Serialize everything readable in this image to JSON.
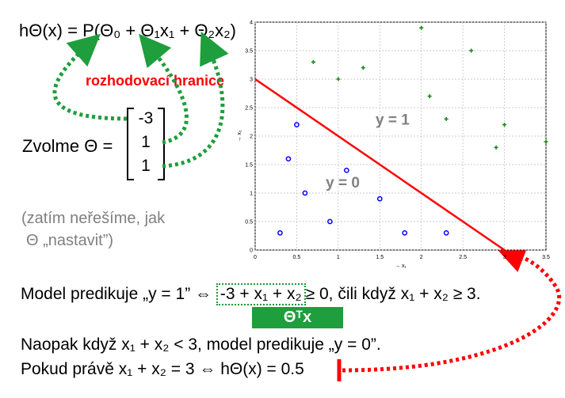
{
  "hypothesis": "hΘ(x) = P(Θ₀ + Θ₁x₁ + Θ₂x₂)",
  "boundary_label": "rozhodovací hranice",
  "choose_label": "Zvolme Θ =",
  "theta_vector": [
    "-3",
    "1",
    "1"
  ],
  "note_lines": [
    "(zatím neřešíme, jak",
    "Θ „nastavit”)"
  ],
  "predict": {
    "prefix": "Model predikuje „y = 1” ⇔ ",
    "boxed": "-3 + x₁ + x₂",
    "suffix": "≥ 0, čili když x₁ + x₂ ≥ 3."
  },
  "theta_tx": "Θᵀx",
  "otherwise": "Naopak když x₁ + x₂ < 3, model predikuje „y = 0”.",
  "exactly": "Pokud právě x₁ + x₂ = 3 ⇔ hΘ(x) = 0.5",
  "colors": {
    "green": "#1e9e3c",
    "red": "#ff0000",
    "blue": "#0000ff",
    "plus": "#1a8a1a"
  },
  "chart_data": {
    "type": "scatter",
    "xlabel": "→ x₁",
    "ylabel": "→ x₂",
    "xlim": [
      0,
      3.5
    ],
    "ylim": [
      0,
      4
    ],
    "xticks": [
      "0",
      "0.5",
      "1",
      "1.5",
      "2",
      "2.5",
      "3",
      "3.5"
    ],
    "yticks": [
      "0",
      "0.5",
      "1",
      "1.5",
      "2",
      "2.5",
      "3",
      "3.5",
      "4"
    ],
    "series": [
      {
        "marker": "circle",
        "points": [
          [
            0.3,
            0.3
          ],
          [
            0.4,
            1.6
          ],
          [
            0.5,
            2.2
          ],
          [
            0.6,
            1.0
          ],
          [
            0.9,
            0.5
          ],
          [
            1.1,
            1.4
          ],
          [
            1.5,
            0.9
          ],
          [
            1.8,
            0.3
          ],
          [
            2.3,
            0.3
          ]
        ]
      },
      {
        "marker": "plus",
        "points": [
          [
            0.7,
            3.3
          ],
          [
            1.0,
            3.0
          ],
          [
            1.3,
            3.2
          ],
          [
            2.0,
            3.9
          ],
          [
            2.1,
            2.7
          ],
          [
            2.3,
            2.3
          ],
          [
            2.6,
            3.5
          ],
          [
            2.9,
            1.8
          ],
          [
            3.0,
            2.2
          ],
          [
            3.5,
            1.9
          ]
        ]
      }
    ],
    "boundary": [
      [
        0,
        3
      ],
      [
        3,
        0
      ]
    ],
    "annotations": [
      {
        "text": "y = 1",
        "x": 1.45,
        "y": 2.2
      },
      {
        "text": "y = 0",
        "x": 0.85,
        "y": 1.1
      }
    ]
  }
}
